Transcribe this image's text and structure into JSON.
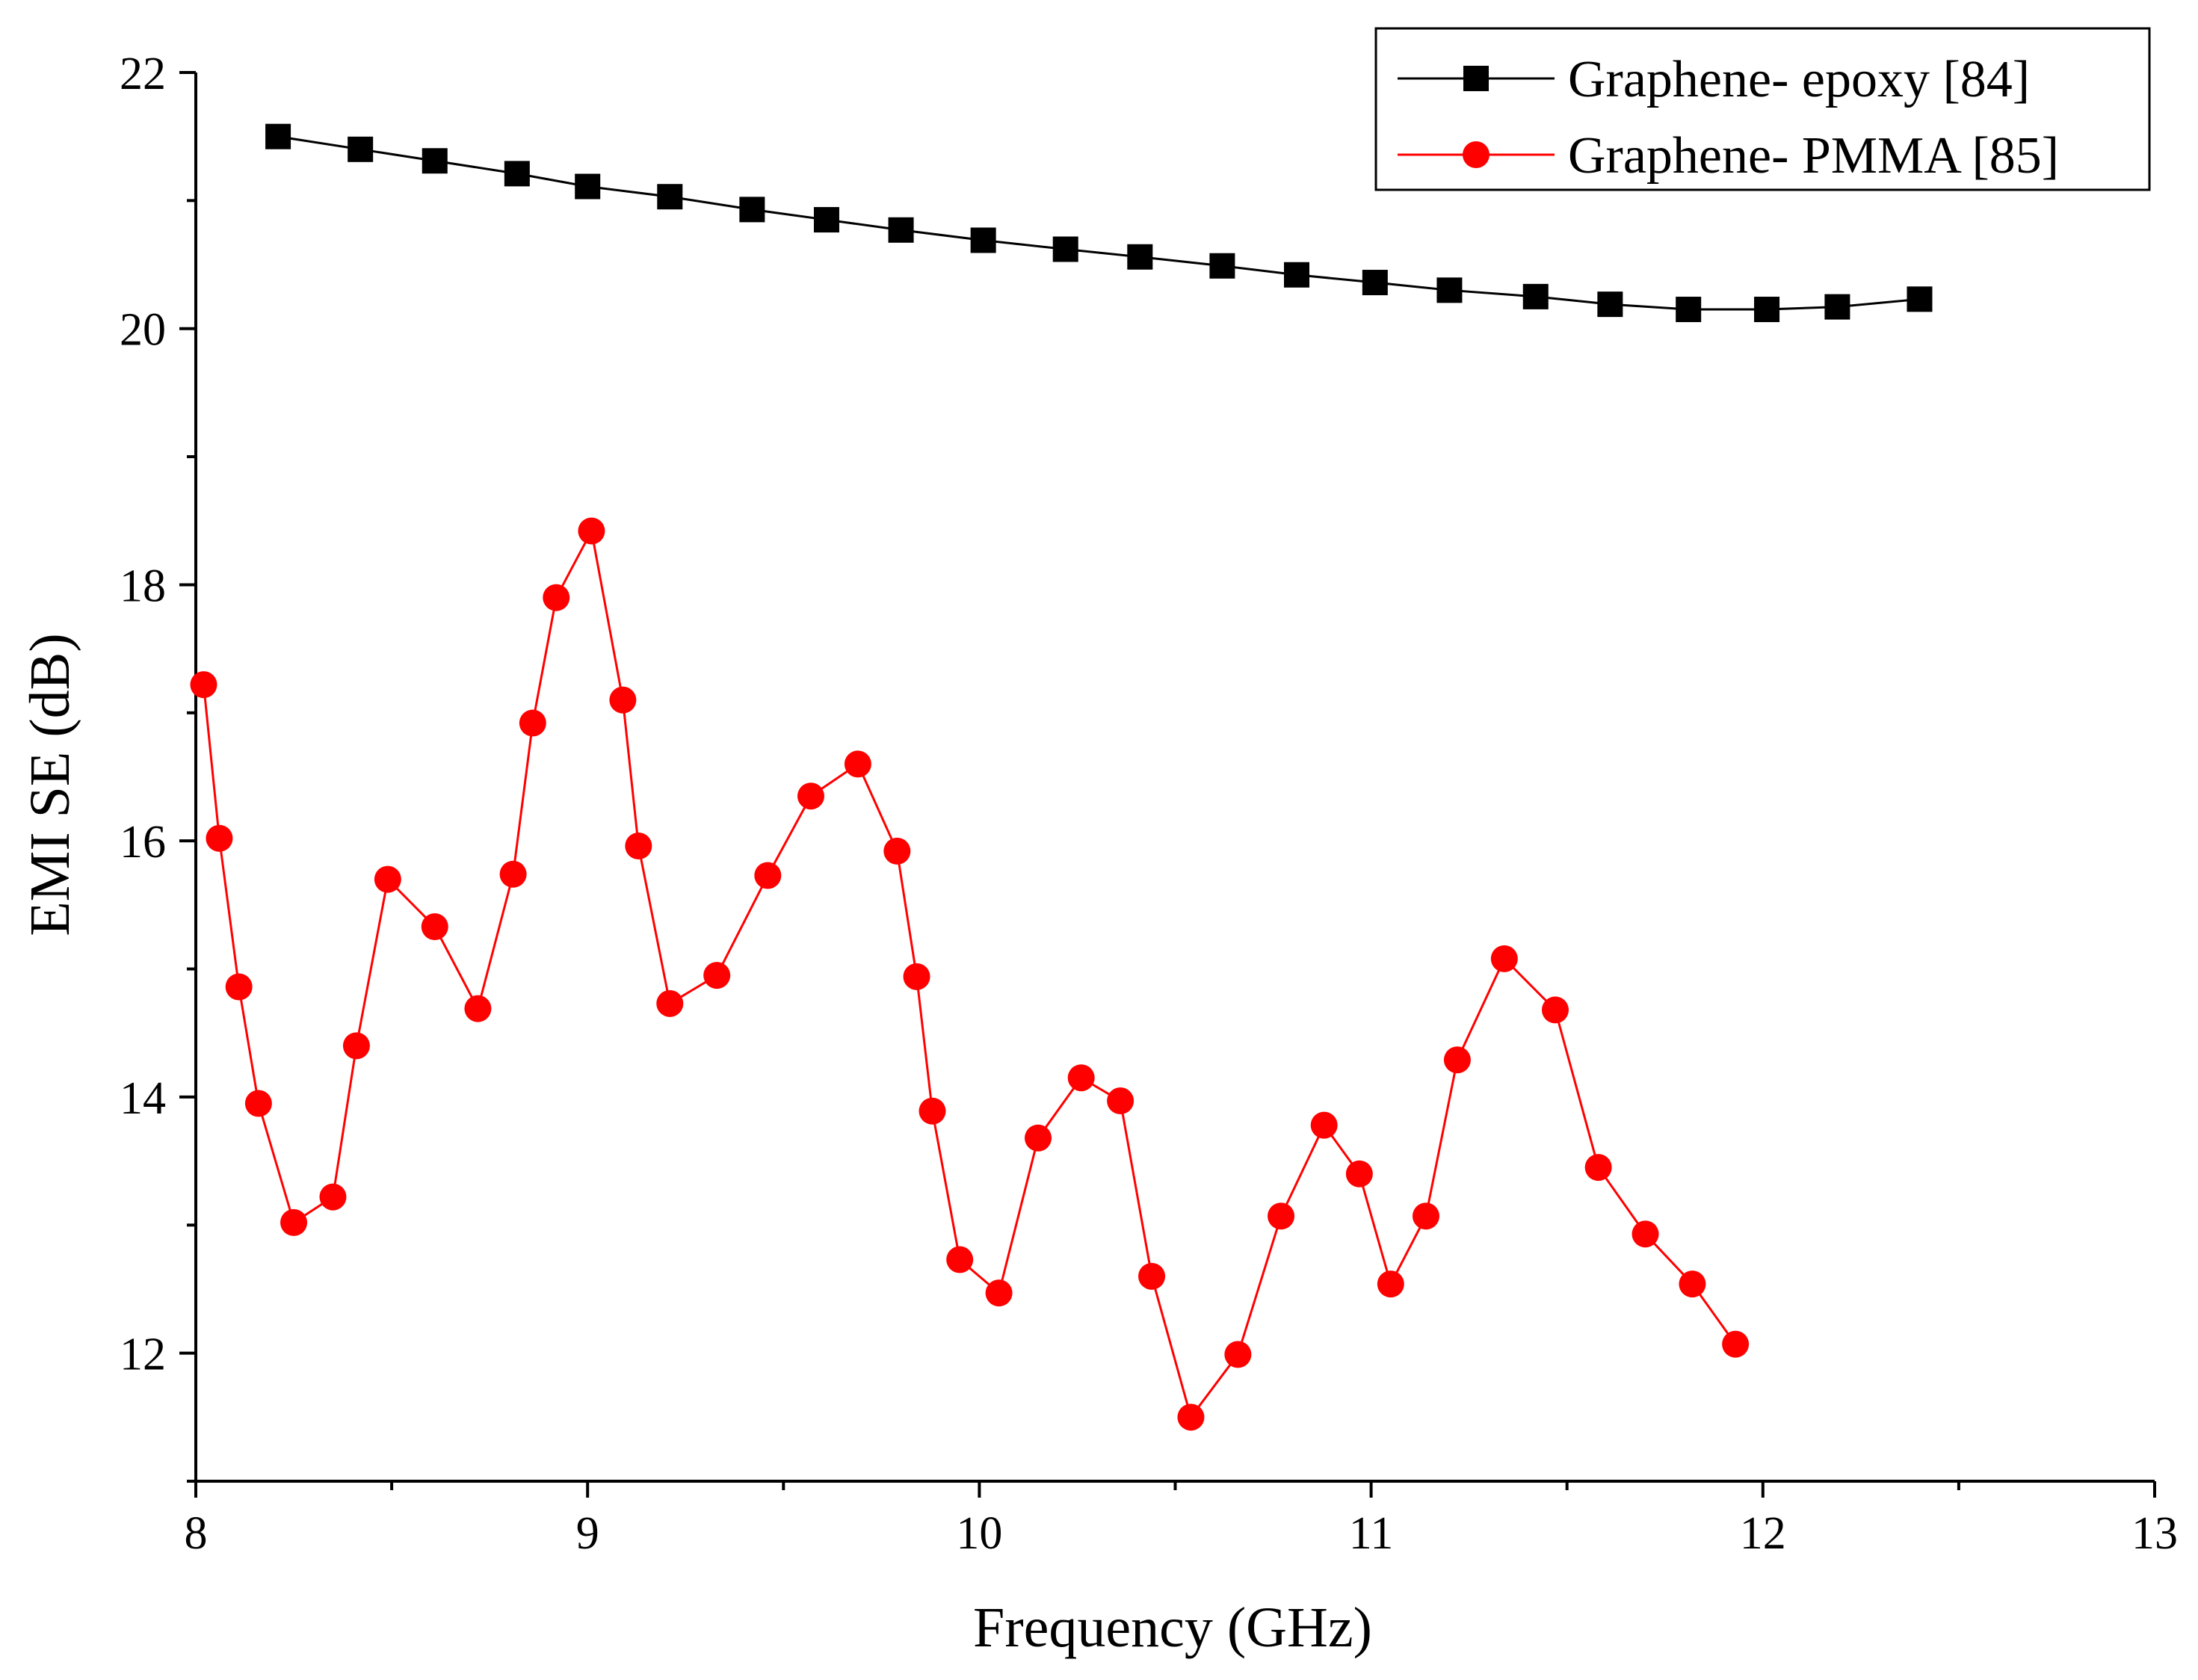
{
  "chart_data": {
    "type": "line",
    "title": "",
    "xlabel": "Frequency (GHz)",
    "ylabel": "EMI SE (dB)",
    "xlim": [
      8,
      13
    ],
    "ylim": [
      11,
      22
    ],
    "xticks": [
      8,
      9,
      10,
      11,
      12,
      13
    ],
    "yticks": [
      12,
      14,
      16,
      18,
      20,
      22
    ],
    "x_minor_step": 0.5,
    "y_minor_step": 1,
    "grid": false,
    "legend_position": "top-right",
    "series": [
      {
        "name": "Graphene- epoxy [84]",
        "color": "#000000",
        "marker": "square",
        "x": [
          8.21,
          8.42,
          8.61,
          8.82,
          9.0,
          9.21,
          9.42,
          9.61,
          9.8,
          10.01,
          10.22,
          10.41,
          10.62,
          10.81,
          11.01,
          11.2,
          11.42,
          11.61,
          11.81,
          12.01,
          12.19,
          12.4
        ],
        "y": [
          21.5,
          21.4,
          21.31,
          21.21,
          21.11,
          21.03,
          20.93,
          20.85,
          20.77,
          20.69,
          20.62,
          20.56,
          20.49,
          20.42,
          20.36,
          20.3,
          20.25,
          20.19,
          20.15,
          20.15,
          20.17,
          20.23
        ]
      },
      {
        "name": "Graphene- PMMA [85]",
        "color": "#ff0000",
        "marker": "circle",
        "x": [
          8.02,
          8.06,
          8.11,
          8.16,
          8.25,
          8.35,
          8.41,
          8.49,
          8.61,
          8.72,
          8.81,
          8.86,
          8.92,
          9.01,
          9.09,
          9.13,
          9.21,
          9.33,
          9.46,
          9.57,
          9.69,
          9.79,
          9.84,
          9.88,
          9.95,
          10.05,
          10.15,
          10.26,
          10.36,
          10.44,
          10.54,
          10.66,
          10.77,
          10.88,
          10.97,
          11.05,
          11.14,
          11.22,
          11.34,
          11.47,
          11.58,
          11.7,
          11.82,
          11.93
        ],
        "y": [
          17.22,
          16.02,
          14.86,
          13.95,
          13.02,
          13.22,
          14.4,
          15.7,
          15.33,
          14.69,
          15.74,
          16.92,
          17.9,
          18.42,
          17.1,
          15.96,
          14.73,
          14.95,
          15.73,
          16.35,
          16.6,
          15.92,
          14.94,
          13.89,
          12.73,
          12.47,
          13.68,
          14.15,
          13.97,
          12.6,
          11.5,
          11.99,
          13.07,
          13.78,
          13.4,
          12.54,
          13.07,
          14.29,
          15.08,
          14.68,
          13.45,
          12.93,
          12.54,
          12.07
        ]
      }
    ]
  }
}
